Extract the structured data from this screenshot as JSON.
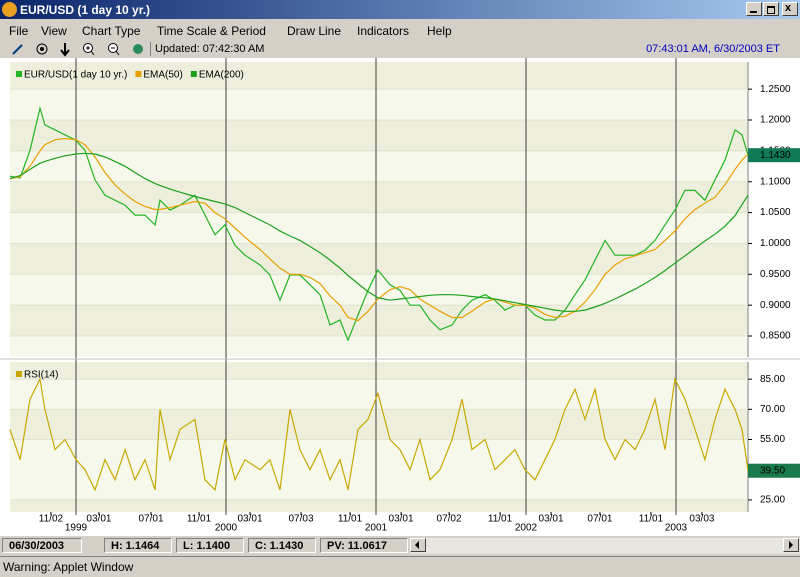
{
  "window": {
    "title": "EUR/USD (1 day  10 yr.)"
  },
  "menu": [
    "File",
    "View",
    "Chart Type",
    "Time Scale & Period",
    "Draw Line",
    "Indicators",
    "Help"
  ],
  "toolbar": {
    "updated": "Updated: 07:42:30 AM",
    "clock": "07:43:01 AM, 6/30/2003 ET"
  },
  "chart_data": [
    {
      "type": "line",
      "x": [
        1998.56,
        1998.627,
        1998.693,
        1998.76,
        1998.793,
        1998.86,
        1998.927,
        1999.0,
        1999.06,
        1999.127,
        1999.193,
        1999.26,
        1999.327,
        1999.393,
        1999.46,
        1999.527,
        1999.56,
        1999.627,
        1999.693,
        1999.793,
        1999.86,
        1999.927,
        1999.993,
        2000.06,
        2000.127,
        2000.227,
        2000.293,
        2000.36,
        2000.427,
        2000.493,
        2000.56,
        2000.627,
        2000.693,
        2000.76,
        2000.813,
        2000.88,
        2000.947,
        2001.013,
        2001.093,
        2001.16,
        2001.227,
        2001.293,
        2001.36,
        2001.427,
        2001.507,
        2001.573,
        2001.64,
        2001.727,
        2001.793,
        2001.86,
        2001.927,
        2001.993,
        2002.06,
        2002.127,
        2002.193,
        2002.26,
        2002.327,
        2002.393,
        2002.46,
        2002.527,
        2002.593,
        2002.66,
        2002.727,
        2002.793,
        2002.86,
        2002.927,
        2002.993,
        2003.06,
        2003.127,
        2003.193,
        2003.26,
        2003.327,
        2003.393,
        2003.44,
        2003.48
      ],
      "series": [
        {
          "name": "EUR/USD(1 day  10 yr.)",
          "color": "#22b422",
          "values": [
            1.109,
            1.106,
            1.151,
            1.219,
            1.192,
            1.184,
            1.176,
            1.167,
            1.151,
            1.103,
            1.078,
            1.07,
            1.062,
            1.046,
            1.046,
            1.03,
            1.07,
            1.054,
            1.062,
            1.078,
            1.046,
            1.014,
            1.03,
            0.997,
            0.981,
            0.965,
            0.949,
            0.908,
            0.949,
            0.949,
            0.933,
            0.917,
            0.868,
            0.876,
            0.843,
            0.884,
            0.924,
            0.957,
            0.933,
            0.924,
            0.9,
            0.9,
            0.876,
            0.86,
            0.868,
            0.892,
            0.908,
            0.917,
            0.908,
            0.892,
            0.9,
            0.9,
            0.884,
            0.876,
            0.876,
            0.892,
            0.917,
            0.941,
            0.973,
            1.005,
            0.981,
            0.981,
            0.981,
            0.989,
            1.005,
            1.03,
            1.054,
            1.086,
            1.086,
            1.07,
            1.103,
            1.135,
            1.184,
            1.176,
            1.143
          ]
        },
        {
          "name": "EMA(50)",
          "color": "#e8a000",
          "values": [
            1.105,
            1.108,
            1.125,
            1.15,
            1.16,
            1.168,
            1.17,
            1.168,
            1.16,
            1.14,
            1.115,
            1.095,
            1.08,
            1.068,
            1.06,
            1.055,
            1.055,
            1.058,
            1.062,
            1.068,
            1.065,
            1.05,
            1.04,
            1.025,
            1.01,
            0.99,
            0.975,
            0.96,
            0.95,
            0.95,
            0.945,
            0.935,
            0.915,
            0.9,
            0.88,
            0.875,
            0.89,
            0.91,
            0.925,
            0.93,
            0.925,
            0.91,
            0.9,
            0.89,
            0.88,
            0.88,
            0.89,
            0.905,
            0.91,
            0.905,
            0.9,
            0.9,
            0.895,
            0.885,
            0.88,
            0.882,
            0.89,
            0.905,
            0.925,
            0.95,
            0.965,
            0.975,
            0.98,
            0.985,
            0.99,
            1.005,
            1.02,
            1.04,
            1.055,
            1.065,
            1.075,
            1.095,
            1.12,
            1.135,
            1.145
          ]
        },
        {
          "name": "EMA(200)",
          "color": "#1ca01c",
          "values": [
            1.105,
            1.11,
            1.12,
            1.13,
            1.133,
            1.138,
            1.142,
            1.145,
            1.146,
            1.145,
            1.14,
            1.133,
            1.125,
            1.115,
            1.105,
            1.097,
            1.094,
            1.088,
            1.083,
            1.076,
            1.072,
            1.068,
            1.064,
            1.058,
            1.05,
            1.038,
            1.03,
            1.02,
            1.012,
            1.005,
            0.995,
            0.985,
            0.973,
            0.96,
            0.948,
            0.935,
            0.922,
            0.912,
            0.908,
            0.91,
            0.912,
            0.914,
            0.916,
            0.917,
            0.917,
            0.916,
            0.914,
            0.912,
            0.91,
            0.907,
            0.904,
            0.901,
            0.898,
            0.895,
            0.892,
            0.89,
            0.89,
            0.892,
            0.897,
            0.903,
            0.91,
            0.918,
            0.926,
            0.935,
            0.945,
            0.956,
            0.968,
            0.98,
            0.992,
            1.004,
            1.015,
            1.028,
            1.045,
            1.063,
            1.078
          ]
        }
      ],
      "last_value_label": "1.1430",
      "xlim": [
        1998.56,
        2003.48
      ],
      "ylim": [
        0.816,
        1.294
      ],
      "yticks": [
        {
          "value": 0.85,
          "label": "0.8500"
        },
        {
          "value": 0.9,
          "label": "0.9000"
        },
        {
          "value": 0.95,
          "label": "0.9500"
        },
        {
          "value": 1.0,
          "label": "1.0000"
        },
        {
          "value": 1.05,
          "label": "1.0500"
        },
        {
          "value": 1.1,
          "label": "1.1000"
        },
        {
          "value": 1.15,
          "label": "1.1500"
        },
        {
          "value": 1.2,
          "label": "1.2000"
        },
        {
          "value": 1.25,
          "label": "1.2500"
        }
      ],
      "year_ticks": [
        1999,
        2000,
        2001,
        2002,
        2003
      ],
      "grid": true
    },
    {
      "type": "line",
      "x": [
        1998.56,
        1998.627,
        1998.693,
        1998.76,
        1998.793,
        1998.86,
        1998.927,
        1999.0,
        1999.06,
        1999.127,
        1999.193,
        1999.26,
        1999.327,
        1999.393,
        1999.46,
        1999.527,
        1999.56,
        1999.627,
        1999.693,
        1999.793,
        1999.86,
        1999.927,
        1999.993,
        2000.06,
        2000.127,
        2000.227,
        2000.293,
        2000.36,
        2000.427,
        2000.493,
        2000.56,
        2000.627,
        2000.693,
        2000.76,
        2000.813,
        2000.88,
        2000.947,
        2001.013,
        2001.093,
        2001.16,
        2001.227,
        2001.293,
        2001.36,
        2001.427,
        2001.507,
        2001.573,
        2001.64,
        2001.727,
        2001.793,
        2001.86,
        2001.927,
        2001.993,
        2002.06,
        2002.127,
        2002.193,
        2002.26,
        2002.327,
        2002.393,
        2002.46,
        2002.527,
        2002.593,
        2002.66,
        2002.727,
        2002.793,
        2002.86,
        2002.927,
        2002.993,
        2003.06,
        2003.127,
        2003.193,
        2003.26,
        2003.327,
        2003.393,
        2003.44,
        2003.48
      ],
      "series": [
        {
          "name": "RSI(14)",
          "color": "#c8a800",
          "values": [
            60,
            45,
            75,
            85,
            70,
            50,
            55,
            45,
            40,
            30,
            45,
            35,
            50,
            35,
            45,
            30,
            70,
            45,
            60,
            65,
            35,
            30,
            55,
            35,
            45,
            40,
            45,
            30,
            70,
            50,
            40,
            50,
            35,
            45,
            30,
            60,
            65,
            78,
            55,
            50,
            40,
            55,
            35,
            40,
            55,
            75,
            50,
            55,
            40,
            45,
            50,
            40,
            35,
            45,
            55,
            70,
            80,
            65,
            80,
            55,
            45,
            55,
            50,
            60,
            75,
            50,
            85,
            75,
            60,
            45,
            65,
            80,
            70,
            60,
            39.5
          ]
        }
      ],
      "last_value_label": "39.50",
      "xlim": [
        1998.56,
        2003.48
      ],
      "ylim": [
        19,
        93.5
      ],
      "yticks": [
        {
          "value": 25,
          "label": "25.00"
        },
        {
          "value": 55,
          "label": "55.00"
        },
        {
          "value": 70,
          "label": "70.00"
        },
        {
          "value": 85,
          "label": "85.00"
        }
      ],
      "xticks": [
        {
          "value": 1998.833,
          "label": "11/02"
        },
        {
          "value": 1999.153,
          "label": "03/01"
        },
        {
          "value": 1999.5,
          "label": "07/01"
        },
        {
          "value": 1999.82,
          "label": "11/01"
        },
        {
          "value": 2000.16,
          "label": "03/01"
        },
        {
          "value": 2000.5,
          "label": "07/03"
        },
        {
          "value": 2000.827,
          "label": "11/01"
        },
        {
          "value": 2001.167,
          "label": "03/01"
        },
        {
          "value": 2001.487,
          "label": "07/02"
        },
        {
          "value": 2001.827,
          "label": "11/01"
        },
        {
          "value": 2002.167,
          "label": "03/01"
        },
        {
          "value": 2002.493,
          "label": "07/01"
        },
        {
          "value": 2002.833,
          "label": "11/01"
        },
        {
          "value": 2003.173,
          "label": "03/03"
        }
      ],
      "year_ticks": [
        1999,
        2000,
        2001,
        2002,
        2003
      ],
      "grid": true
    }
  ],
  "status": {
    "date": "06/30/2003",
    "high": "H: 1.1464",
    "low": "L: 1.1400",
    "close": "C: 1.1430",
    "pv": "PV: 11.0617"
  },
  "footer": "Warning: Applet Window"
}
